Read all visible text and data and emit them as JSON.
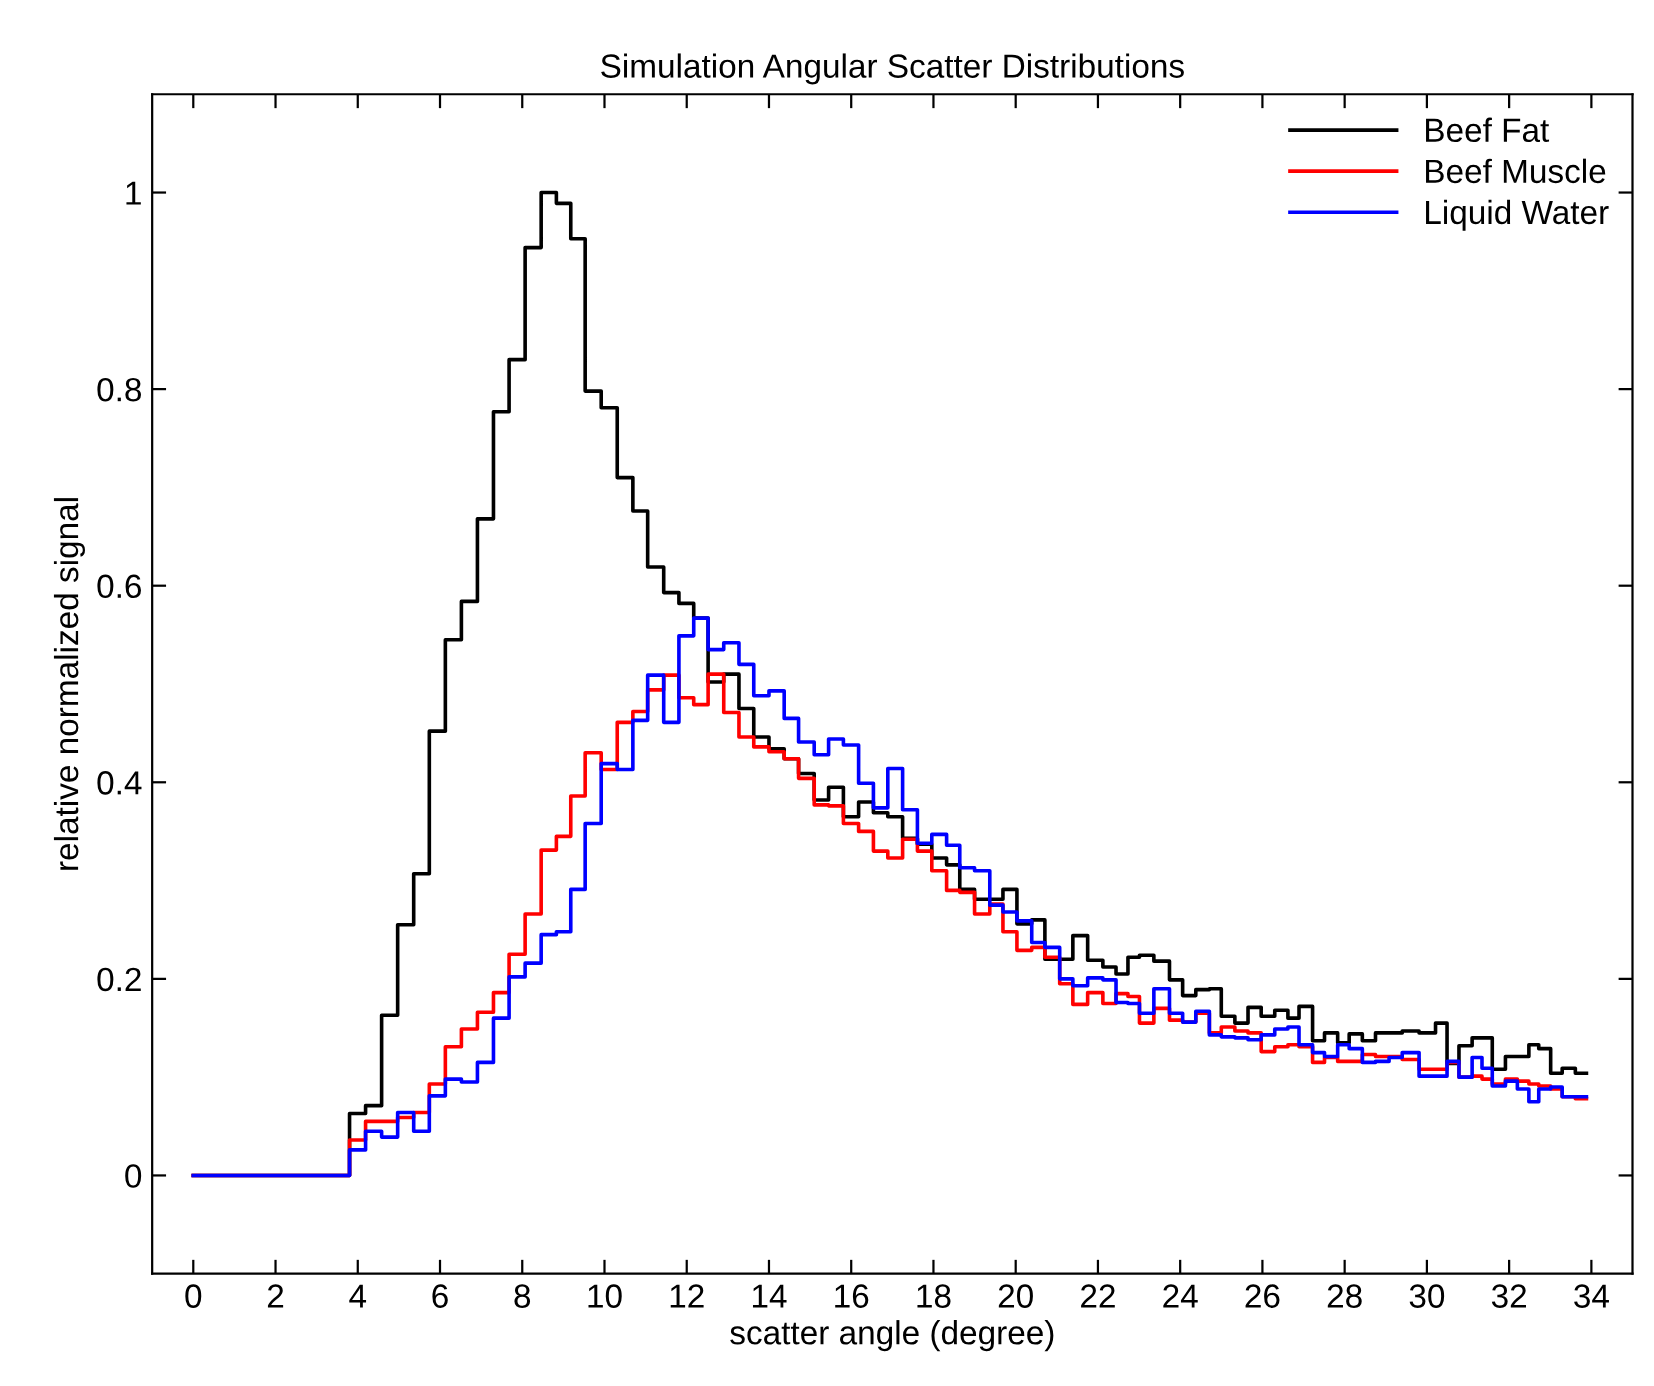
{
  "chart_data": {
    "type": "step",
    "title": "Simulation Angular Scatter Distributions",
    "xlabel": "scatter angle (degree)",
    "ylabel": "relative normalized signal",
    "x": [
      0,
      3.8,
      4.19,
      4.58,
      4.97,
      5.36,
      5.74,
      6.13,
      6.52,
      6.91,
      7.3,
      7.68,
      8.07,
      8.46,
      8.83,
      9.18,
      9.53,
      9.92,
      10.31,
      10.69,
      11.05,
      11.44,
      11.81,
      12.17,
      12.52,
      12.9,
      13.27,
      13.63,
      14.0,
      14.37,
      14.72,
      15.1,
      15.45,
      15.81,
      16.18,
      16.54,
      16.89,
      17.25,
      17.61,
      17.96,
      18.32,
      18.64,
      19.0,
      19.37,
      19.69,
      20.03,
      20.39,
      20.71,
      21.07,
      21.39,
      21.75,
      22.12,
      22.44,
      22.73,
      23.01,
      23.36,
      23.74,
      24.06,
      24.38,
      24.71,
      25.0,
      25.33,
      25.65,
      25.97,
      26.3,
      26.62,
      26.89,
      27.22,
      27.51,
      27.83,
      28.11,
      28.43,
      28.75,
      29.08,
      29.4,
      29.81,
      30.21,
      30.49,
      30.78,
      31.1,
      31.34,
      31.59,
      31.91,
      32.2,
      32.48,
      32.72,
      33.01,
      33.29,
      33.61,
      33.88
    ],
    "series": [
      {
        "name": "Beef Fat",
        "color": "#000000",
        "values": [
          0,
          0.063,
          0.071,
          0.163,
          0.255,
          0.307,
          0.452,
          0.545,
          0.584,
          0.668,
          0.777,
          0.83,
          0.944,
          1.0,
          0.989,
          0.953,
          0.798,
          0.781,
          0.71,
          0.676,
          0.619,
          0.593,
          0.582,
          0.567,
          0.502,
          0.51,
          0.475,
          0.446,
          0.434,
          0.424,
          0.409,
          0.382,
          0.395,
          0.365,
          0.38,
          0.369,
          0.365,
          0.343,
          0.337,
          0.323,
          0.316,
          0.291,
          0.281,
          0.281,
          0.291,
          0.256,
          0.26,
          0.22,
          0.22,
          0.244,
          0.219,
          0.212,
          0.205,
          0.222,
          0.224,
          0.218,
          0.199,
          0.183,
          0.189,
          0.19,
          0.162,
          0.155,
          0.171,
          0.162,
          0.168,
          0.16,
          0.172,
          0.137,
          0.145,
          0.135,
          0.144,
          0.137,
          0.145,
          0.145,
          0.147,
          0.145,
          0.155,
          0.114,
          0.132,
          0.14,
          0.14,
          0.108,
          0.121,
          0.121,
          0.133,
          0.129,
          0.104,
          0.109,
          0.104,
          0.104
        ]
      },
      {
        "name": "Beef Muscle",
        "color": "#ff0000",
        "values": [
          0,
          0.036,
          0.055,
          0.055,
          0.059,
          0.064,
          0.093,
          0.131,
          0.149,
          0.166,
          0.186,
          0.225,
          0.266,
          0.331,
          0.345,
          0.386,
          0.43,
          0.413,
          0.461,
          0.472,
          0.494,
          0.509,
          0.486,
          0.479,
          0.51,
          0.471,
          0.446,
          0.436,
          0.431,
          0.424,
          0.404,
          0.377,
          0.376,
          0.358,
          0.35,
          0.33,
          0.323,
          0.342,
          0.33,
          0.31,
          0.29,
          0.288,
          0.266,
          0.276,
          0.248,
          0.229,
          0.232,
          0.222,
          0.195,
          0.174,
          0.186,
          0.175,
          0.185,
          0.182,
          0.155,
          0.17,
          0.158,
          0.156,
          0.165,
          0.145,
          0.151,
          0.147,
          0.145,
          0.126,
          0.131,
          0.133,
          0.131,
          0.115,
          0.12,
          0.116,
          0.116,
          0.123,
          0.121,
          0.121,
          0.118,
          0.108,
          0.108,
          0.115,
          0.1,
          0.101,
          0.098,
          0.093,
          0.098,
          0.096,
          0.093,
          0.091,
          0.088,
          0.08,
          0.078,
          0.078
        ]
      },
      {
        "name": "Liquid Water",
        "color": "#0000ff",
        "values": [
          0,
          0.026,
          0.045,
          0.039,
          0.064,
          0.045,
          0.081,
          0.098,
          0.095,
          0.115,
          0.16,
          0.202,
          0.216,
          0.245,
          0.248,
          0.291,
          0.358,
          0.419,
          0.413,
          0.463,
          0.509,
          0.461,
          0.549,
          0.567,
          0.535,
          0.542,
          0.52,
          0.488,
          0.493,
          0.465,
          0.441,
          0.428,
          0.444,
          0.438,
          0.399,
          0.374,
          0.414,
          0.372,
          0.338,
          0.347,
          0.336,
          0.313,
          0.31,
          0.275,
          0.268,
          0.259,
          0.237,
          0.232,
          0.2,
          0.193,
          0.201,
          0.199,
          0.176,
          0.175,
          0.165,
          0.19,
          0.165,
          0.156,
          0.167,
          0.143,
          0.141,
          0.14,
          0.138,
          0.143,
          0.149,
          0.151,
          0.133,
          0.125,
          0.121,
          0.133,
          0.129,
          0.115,
          0.116,
          0.12,
          0.125,
          0.101,
          0.101,
          0.116,
          0.1,
          0.12,
          0.109,
          0.091,
          0.096,
          0.088,
          0.075,
          0.088,
          0.09,
          0.08,
          0.08,
          0.08
        ]
      }
    ],
    "xlim": [
      -1,
      35
    ],
    "xticks": [
      0,
      2,
      4,
      6,
      8,
      10,
      12,
      14,
      16,
      18,
      20,
      22,
      24,
      26,
      28,
      30,
      32,
      34
    ],
    "ylim": [
      -0.1,
      1.1
    ],
    "yticks": [
      0,
      0.2,
      0.4,
      0.6,
      0.8,
      1
    ],
    "legend": "top right"
  }
}
